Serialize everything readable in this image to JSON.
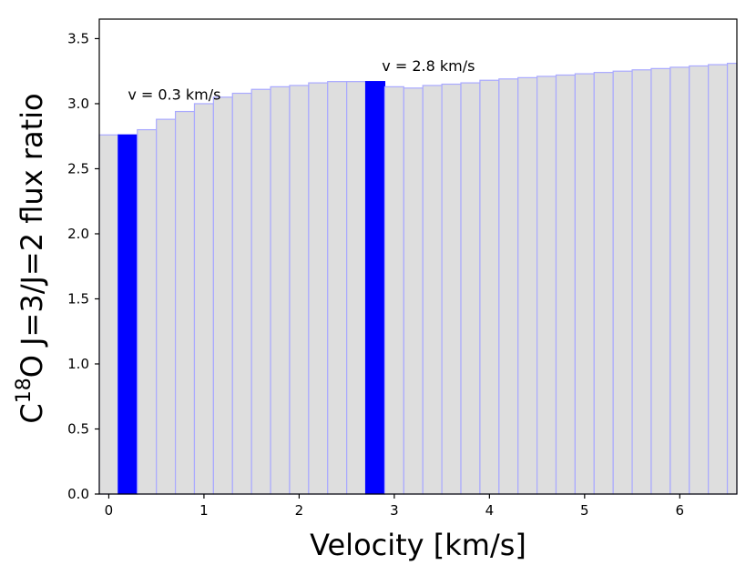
{
  "chart_data": {
    "type": "bar",
    "xlabel": "Velocity [km/s]",
    "ylabel": {
      "prefix": "C",
      "superscript": "18",
      "suffix": "O  J=3/J=2 flux ratio"
    },
    "xlim": [
      -0.1,
      6.6
    ],
    "ylim": [
      0.0,
      3.65
    ],
    "xticks": [
      0,
      1,
      2,
      3,
      4,
      5,
      6
    ],
    "yticks": [
      "0.0",
      "0.5",
      "1.0",
      "1.5",
      "2.0",
      "2.5",
      "3.0",
      "3.5"
    ],
    "bin_width": 0.2,
    "bins": [
      {
        "x0": -0.1,
        "value": 2.76
      },
      {
        "x0": 0.1,
        "value": 2.76
      },
      {
        "x0": 0.3,
        "value": 2.8
      },
      {
        "x0": 0.5,
        "value": 2.88
      },
      {
        "x0": 0.7,
        "value": 2.94
      },
      {
        "x0": 0.9,
        "value": 3.0
      },
      {
        "x0": 1.1,
        "value": 3.05
      },
      {
        "x0": 1.3,
        "value": 3.08
      },
      {
        "x0": 1.5,
        "value": 3.11
      },
      {
        "x0": 1.7,
        "value": 3.13
      },
      {
        "x0": 1.9,
        "value": 3.14
      },
      {
        "x0": 2.1,
        "value": 3.16
      },
      {
        "x0": 2.3,
        "value": 3.17
      },
      {
        "x0": 2.5,
        "value": 3.17
      },
      {
        "x0": 2.7,
        "value": 3.17
      },
      {
        "x0": 2.9,
        "value": 3.13
      },
      {
        "x0": 3.1,
        "value": 3.12
      },
      {
        "x0": 3.3,
        "value": 3.14
      },
      {
        "x0": 3.5,
        "value": 3.15
      },
      {
        "x0": 3.7,
        "value": 3.16
      },
      {
        "x0": 3.9,
        "value": 3.18
      },
      {
        "x0": 4.1,
        "value": 3.19
      },
      {
        "x0": 4.3,
        "value": 3.2
      },
      {
        "x0": 4.5,
        "value": 3.21
      },
      {
        "x0": 4.7,
        "value": 3.22
      },
      {
        "x0": 4.9,
        "value": 3.23
      },
      {
        "x0": 5.1,
        "value": 3.24
      },
      {
        "x0": 5.3,
        "value": 3.25
      },
      {
        "x0": 5.5,
        "value": 3.26
      },
      {
        "x0": 5.7,
        "value": 3.27
      },
      {
        "x0": 5.9,
        "value": 3.28
      },
      {
        "x0": 6.1,
        "value": 3.29
      },
      {
        "x0": 6.3,
        "value": 3.3
      },
      {
        "x0": 6.5,
        "value": 3.31
      }
    ],
    "highlighted_bins": [
      1,
      14
    ],
    "annotations": [
      {
        "text": "v = 0.3 km/s",
        "x": 0.2,
        "y": 3.03
      },
      {
        "text": "v = 2.8 km/s",
        "x": 2.87,
        "y": 3.25
      }
    ],
    "colors": {
      "bar_fill": "#dedede",
      "bar_edge": "#a9a9ff",
      "highlight": "#0000ff",
      "axis": "#000000"
    }
  }
}
